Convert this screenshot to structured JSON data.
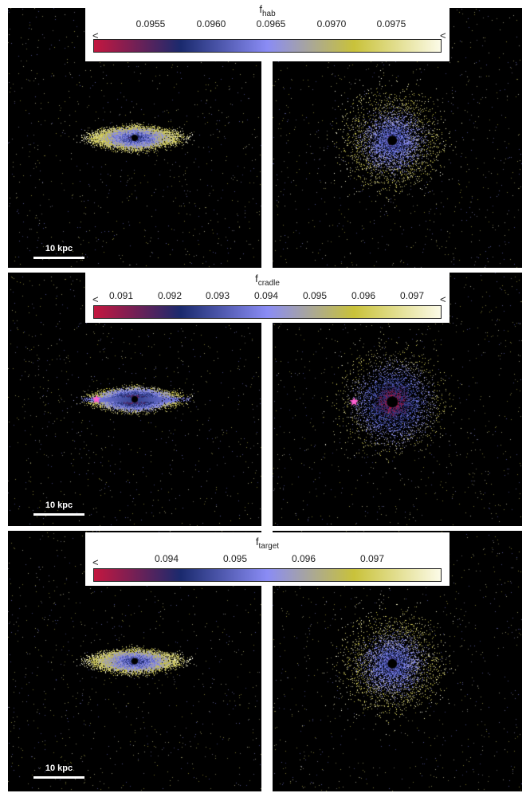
{
  "rows": [
    {
      "title_main": "f",
      "title_sub": "hab",
      "ticks": [
        "0.0955",
        "0.0960",
        "0.0965",
        "0.0970",
        "0.0975"
      ],
      "left_marker": "<",
      "right_marker": "<",
      "scale_label": "10 kpc",
      "star_marker": false,
      "center_color_edge": "#2a3bd8",
      "center_color_face": "#3a4ff0"
    },
    {
      "title_main": "f",
      "title_sub": "cradle",
      "ticks": [
        "0.091",
        "0.092",
        "0.093",
        "0.094",
        "0.095",
        "0.096",
        "0.097"
      ],
      "left_marker": "<",
      "right_marker": "<",
      "scale_label": "10 kpc",
      "star_marker": true,
      "center_color_edge": "#3048d8",
      "center_color_face": "#c0203a"
    },
    {
      "title_main": "f",
      "title_sub": "target",
      "ticks": [
        "0.094",
        "0.095",
        "0.096",
        "0.097"
      ],
      "left_marker": "<",
      "right_marker": "",
      "scale_label": "10 kpc",
      "star_marker": false,
      "center_color_edge": "#6a3bb0",
      "center_color_face": "#c02040"
    }
  ],
  "colormap": [
    "#c4173f",
    "#1a2a6e",
    "#8a8cf5",
    "#c9c23a",
    "#fcfbe8"
  ],
  "star_color": "#ff5fd2"
}
